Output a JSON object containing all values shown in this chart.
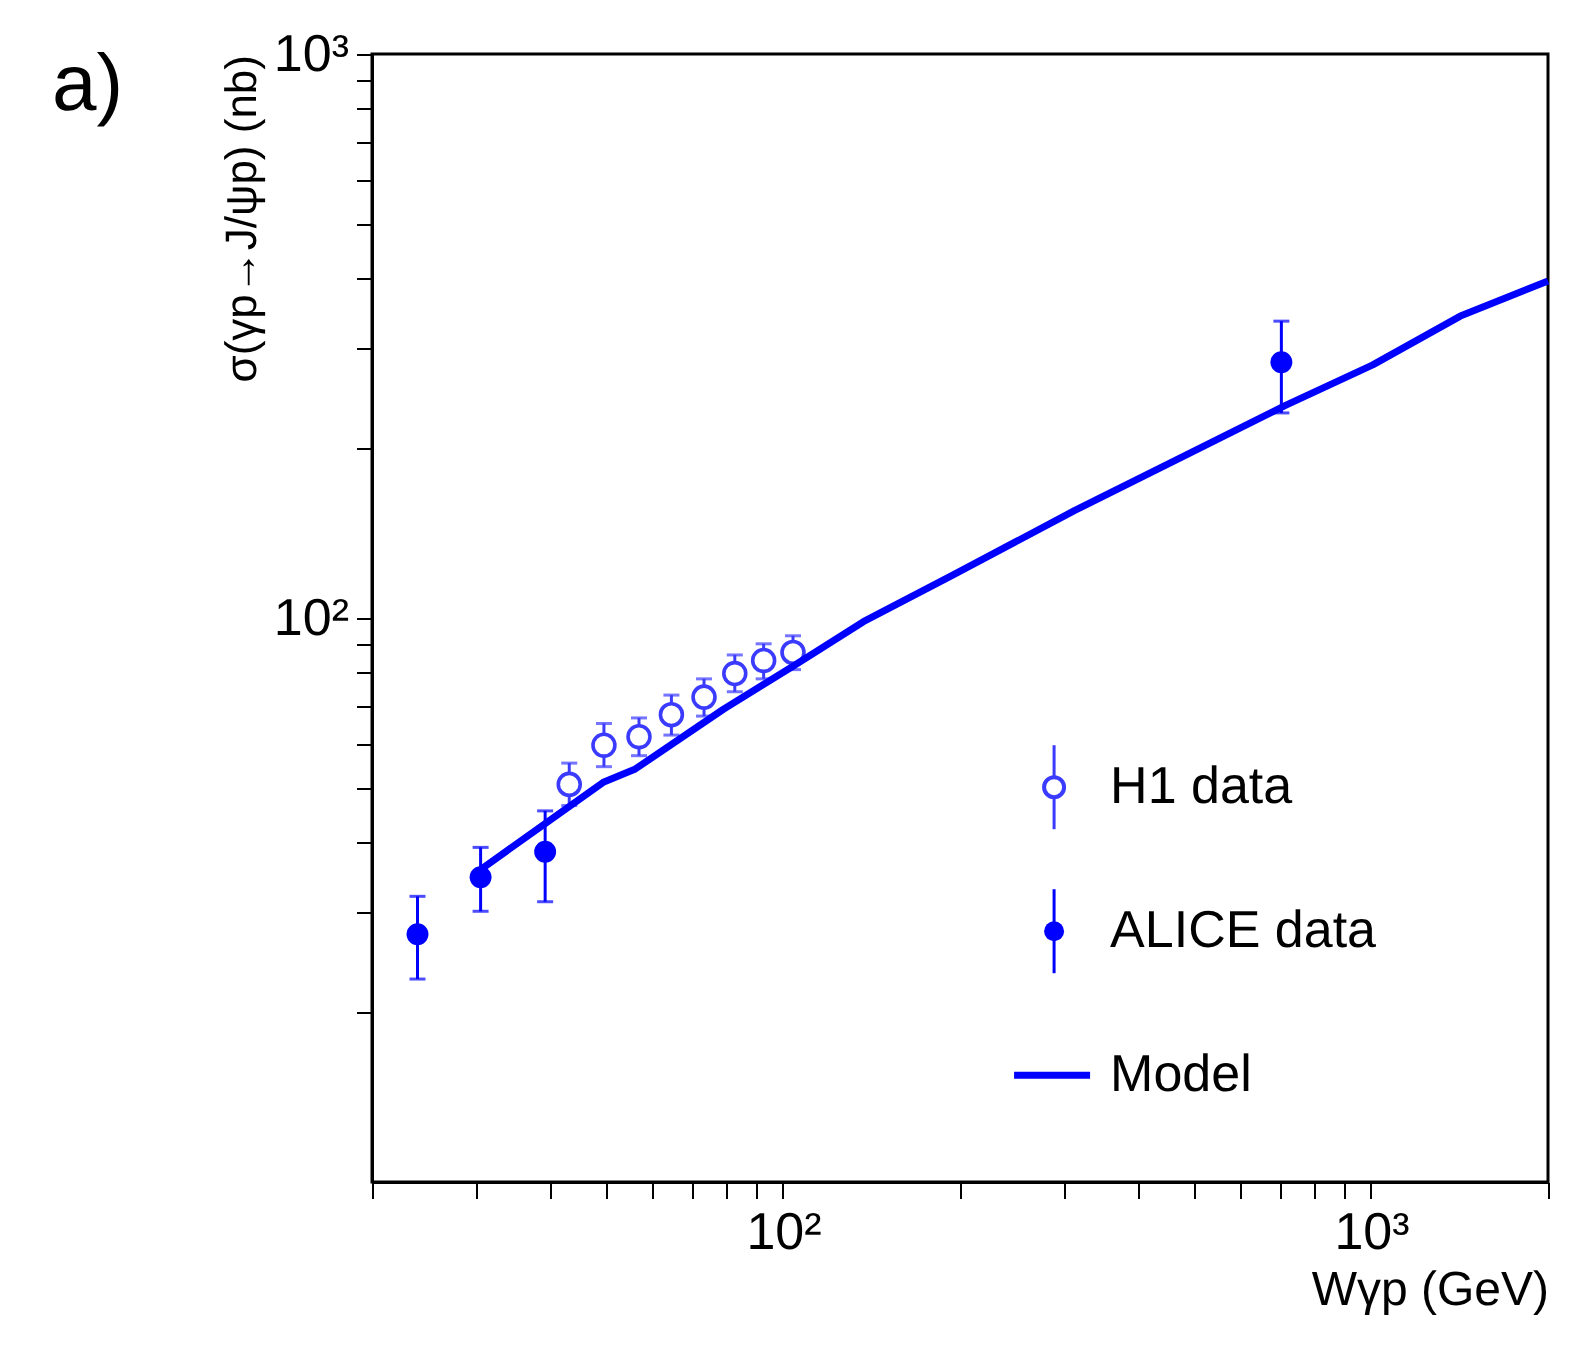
{
  "chart_data": {
    "type": "scatter",
    "xlabel": "Wγp (GeV)",
    "ylabel": "σ(γp→J/ψp) (nb)",
    "annotations": [
      "a)"
    ],
    "log": "xy",
    "grid": false,
    "legend": "bottom right",
    "marker": "circle",
    "xlim": [
      20,
      2000
    ],
    "ylim": [
      10,
      1000
    ],
    "xticks": [
      {
        "value": 20,
        "label": null
      },
      {
        "value": 30,
        "label": null
      },
      {
        "value": 40,
        "label": null
      },
      {
        "value": 50,
        "label": null
      },
      {
        "value": 60,
        "label": null
      },
      {
        "value": 70,
        "label": null
      },
      {
        "value": 80,
        "label": null
      },
      {
        "value": 90,
        "label": null
      },
      {
        "value": 100,
        "label": "10²"
      },
      {
        "value": 200,
        "label": null
      },
      {
        "value": 300,
        "label": null
      },
      {
        "value": 400,
        "label": null
      },
      {
        "value": 500,
        "label": null
      },
      {
        "value": 600,
        "label": null
      },
      {
        "value": 700,
        "label": null
      },
      {
        "value": 800,
        "label": null
      },
      {
        "value": 900,
        "label": null
      },
      {
        "value": 1000,
        "label": "10³"
      },
      {
        "value": 2000,
        "label": null
      }
    ],
    "yticks": [
      {
        "value": 20,
        "label": null
      },
      {
        "value": 30,
        "label": null
      },
      {
        "value": 40,
        "label": null
      },
      {
        "value": 50,
        "label": null
      },
      {
        "value": 60,
        "label": null
      },
      {
        "value": 70,
        "label": null
      },
      {
        "value": 80,
        "label": null
      },
      {
        "value": 90,
        "label": null
      },
      {
        "value": 100,
        "label": "10²"
      },
      {
        "value": 200,
        "label": null
      },
      {
        "value": 300,
        "label": null
      },
      {
        "value": 400,
        "label": null
      },
      {
        "value": 500,
        "label": null
      },
      {
        "value": 600,
        "label": null
      },
      {
        "value": 700,
        "label": null
      },
      {
        "value": 800,
        "label": null
      },
      {
        "value": 900,
        "label": null
      },
      {
        "value": 1000,
        "label": "10³"
      }
    ],
    "series": [
      {
        "name": "H1 data",
        "color": "#3b3bff",
        "x": [
          43.3,
          49.6,
          56.9,
          64.6,
          73.4,
          82.8,
          92.7,
          104
        ],
        "values": [
          50.7,
          59.5,
          61.6,
          67.4,
          72.4,
          79.7,
          84.1,
          86.9
        ],
        "errors": [
          [
            46.5,
            55.3
          ],
          [
            54.5,
            65
          ],
          [
            57,
            66.5
          ],
          [
            62,
            73
          ],
          [
            67,
            78
          ],
          [
            74,
            86
          ],
          [
            78,
            90
          ],
          [
            81,
            93
          ]
        ]
      },
      {
        "name": "ALICE data",
        "color": "#0000ff",
        "x": [
          23.9,
          30.6,
          39.4,
          704
        ],
        "values": [
          27.5,
          34.7,
          38.5,
          284
        ],
        "errors": [
          [
            22.9,
            32.1
          ],
          [
            30.2,
            39.2
          ],
          [
            31.4,
            45.5
          ],
          [
            231,
            336
          ]
        ]
      },
      {
        "name": "Model",
        "type": "line",
        "marker": "none",
        "color": "#0000ff",
        "x": [
          30.6,
          39.4,
          49.6,
          56.1,
          79.2,
          104,
          137,
          194,
          313,
          473,
          714,
          1007,
          1419,
          2000
        ],
        "values": [
          35.8,
          43.2,
          51.2,
          54.0,
          68.9,
          82.1,
          98.5,
          119,
          155,
          192,
          238,
          281,
          343,
          396
        ]
      }
    ]
  }
}
